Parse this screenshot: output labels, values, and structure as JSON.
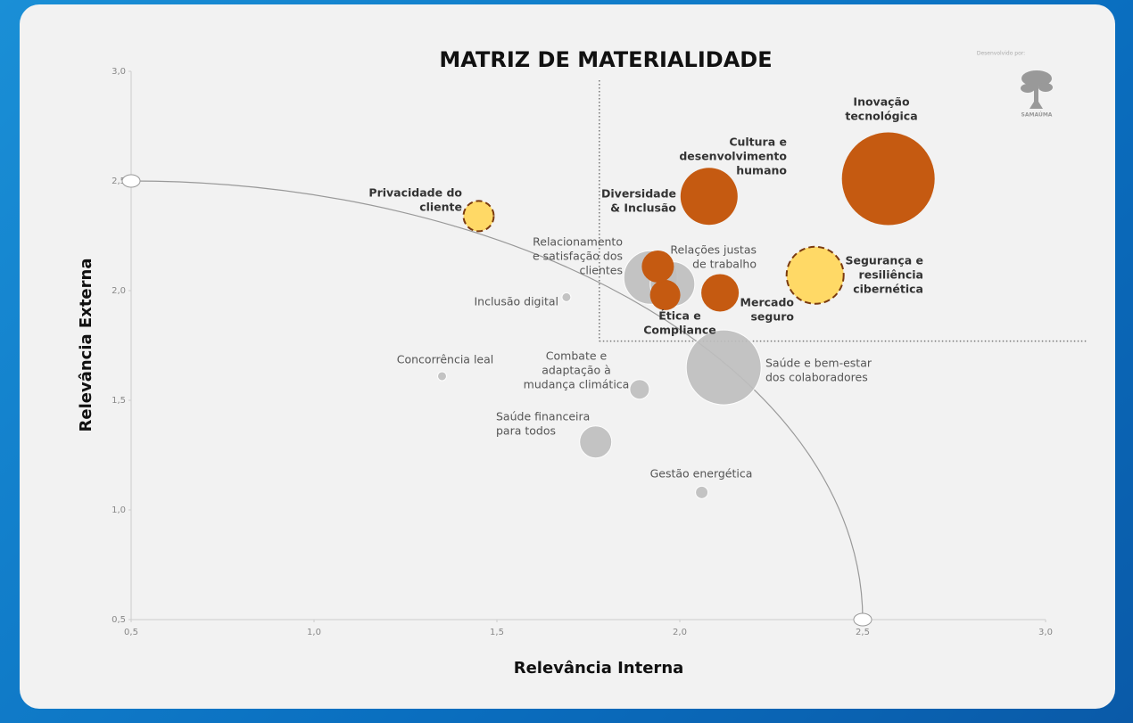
{
  "chart_data": {
    "type": "bubble",
    "title": "MATRIZ DE MATERIALIDADE",
    "credit": "Desenvolvido por:",
    "logo": "SAMAÚMA",
    "xlabel": "Relevância Interna",
    "ylabel": "Relevância  Externa",
    "xlim": [
      0.5,
      3.0
    ],
    "ylim": [
      0.5,
      3.0
    ],
    "xticks": [
      {
        "value": 0.5,
        "label": "0,5"
      },
      {
        "value": 1.0,
        "label": "1,0"
      },
      {
        "value": 1.5,
        "label": "1,5"
      },
      {
        "value": 2.0,
        "label": "2,0"
      },
      {
        "value": 2.5,
        "label": "2,5"
      },
      {
        "value": 3.0,
        "label": "3,0"
      }
    ],
    "yticks": [
      {
        "value": 0.5,
        "label": "0,5"
      },
      {
        "value": 1.0,
        "label": "1,0"
      },
      {
        "value": 1.5,
        "label": "1,5"
      },
      {
        "value": 2.0,
        "label": "2,0"
      },
      {
        "value": 2.5,
        "label": "2,5"
      },
      {
        "value": 3.0,
        "label": "3,0"
      }
    ],
    "thresholds": {
      "x": 1.78,
      "y": 1.77
    },
    "frontier": {
      "x": 2.5,
      "y": 2.5
    },
    "colors": {
      "high": "#c55a11",
      "emerging": "#ffd966",
      "low": "#bfbfbf"
    },
    "points": [
      {
        "name": [
          "Saúde e bem-estar",
          "dos colaboradores"
        ],
        "x": 2.12,
        "y": 1.65,
        "size": 42,
        "group": "low"
      },
      {
        "name": [
          "Inovação",
          "tecnológica"
        ],
        "x": 2.57,
        "y": 2.51,
        "size": 52,
        "group": "high"
      },
      {
        "name": [
          "Cultura e",
          "desenvolvimento",
          "humano"
        ],
        "x": 2.08,
        "y": 2.43,
        "size": 32,
        "group": "high"
      },
      {
        "name": [
          "Segurança e",
          "resiliência",
          "cibernética"
        ],
        "x": 2.37,
        "y": 2.07,
        "size": 32,
        "group": "emerging"
      },
      {
        "name": [
          "Relacionamento",
          "e satisfação dos",
          "clientes"
        ],
        "x": 1.92,
        "y": 2.06,
        "size": 30,
        "group": "low"
      },
      {
        "name": [
          "Relações justas",
          "de trabalho"
        ],
        "x": 1.98,
        "y": 2.03,
        "size": 25,
        "group": "low"
      },
      {
        "name": [
          "Mercado",
          "seguro"
        ],
        "x": 2.11,
        "y": 1.99,
        "size": 21,
        "group": "high"
      },
      {
        "name": [
          "Ética e",
          "Compliance"
        ],
        "x": 1.96,
        "y": 1.98,
        "size": 17,
        "group": "high"
      },
      {
        "name": [
          "Diversidade",
          "& Inclusão"
        ],
        "x": 1.94,
        "y": 2.11,
        "size": 18,
        "group": "high"
      },
      {
        "name": [
          "Privacidade do",
          "cliente"
        ],
        "x": 1.45,
        "y": 2.34,
        "size": 17,
        "group": "emerging"
      },
      {
        "name": [
          "Saúde financeira",
          "para todos"
        ],
        "x": 1.77,
        "y": 1.31,
        "size": 18,
        "group": "low"
      },
      {
        "name": [
          "Combate e",
          "adaptação à",
          "mudança climática"
        ],
        "x": 1.89,
        "y": 1.55,
        "size": 11,
        "group": "low"
      },
      {
        "name": [
          "Gestão energética"
        ],
        "x": 2.06,
        "y": 1.08,
        "size": 7,
        "group": "low"
      },
      {
        "name": [
          "Inclusão digital"
        ],
        "x": 1.69,
        "y": 1.97,
        "size": 5,
        "group": "low"
      },
      {
        "name": [
          "Concorrência leal"
        ],
        "x": 1.35,
        "y": 1.61,
        "size": 5,
        "group": "low"
      }
    ]
  }
}
